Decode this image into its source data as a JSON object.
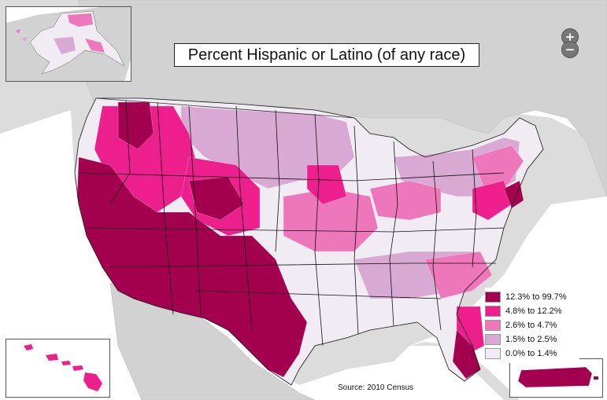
{
  "title": "Percent Hispanic or Latino (of any race)",
  "source": "Source:  2010 Census",
  "controls": {
    "zoom_in": "+",
    "zoom_out": "−"
  },
  "legend": {
    "items": [
      {
        "label": "12.3% to 99.7%",
        "color": "#a3004f"
      },
      {
        "label": "4.8% to 12.2%",
        "color": "#ec1f8c"
      },
      {
        "label": "2.6% to 4.7%",
        "color": "#ee77bb"
      },
      {
        "label": "1.5% to 2.5%",
        "color": "#d8a9d3"
      },
      {
        "label": "0.0% to 1.4%",
        "color": "#f1ecf4"
      }
    ]
  },
  "colors": {
    "land_outside": "#d2d2d2",
    "water": "#ffffff",
    "state_border": "#111111",
    "county_border": "#ffffff"
  }
}
